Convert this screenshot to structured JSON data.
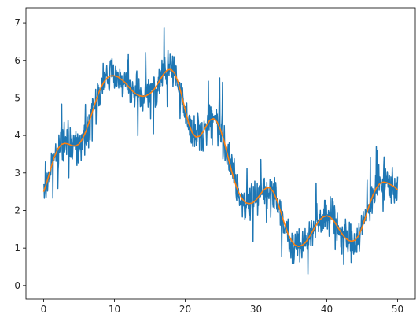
{
  "chart_data": {
    "type": "line",
    "title": "",
    "xlabel": "",
    "ylabel": "",
    "xlim": [
      -2.5,
      52.5
    ],
    "ylim": [
      -0.36,
      7.4
    ],
    "xticks": [
      0,
      10,
      20,
      30,
      40,
      50
    ],
    "yticks": [
      0,
      1,
      2,
      3,
      4,
      5,
      6,
      7
    ],
    "grid": false,
    "legend": "none",
    "series": [
      {
        "role": "noisy",
        "color": "#1f77b4",
        "x_range": [
          0,
          50
        ],
        "n_points": 1000,
        "noise_amplitude": 0.45,
        "spike_amplitude": 1.3,
        "seed": 7
      },
      {
        "role": "smooth",
        "color": "#ff7f0e",
        "x": [
          0,
          0.5,
          1,
          1.5,
          2,
          2.5,
          3,
          3.5,
          4,
          4.5,
          5,
          5.5,
          6,
          6.5,
          7,
          7.5,
          8,
          8.5,
          9,
          9.5,
          10,
          10.5,
          11,
          11.5,
          12,
          12.5,
          13,
          13.5,
          14,
          14.5,
          15,
          15.5,
          16,
          16.5,
          17,
          17.5,
          18,
          18.5,
          19,
          19.5,
          20,
          20.5,
          21,
          21.5,
          22,
          22.5,
          23,
          23.5,
          24,
          24.5,
          25,
          25.5,
          26,
          26.5,
          27,
          27.5,
          28,
          28.5,
          29,
          29.5,
          30,
          30.5,
          31,
          31.5,
          32,
          32.5,
          33,
          33.5,
          34,
          34.5,
          35,
          35.5,
          36,
          36.5,
          37,
          37.5,
          38,
          38.5,
          39,
          39.5,
          40,
          40.5,
          41,
          41.5,
          42,
          42.5,
          43,
          43.5,
          44,
          44.5,
          45,
          45.5,
          46,
          46.5,
          47,
          47.5,
          48,
          48.5,
          49,
          49.5,
          50
        ],
        "y": [
          2.5,
          2.78,
          3.11,
          3.42,
          3.64,
          3.76,
          3.79,
          3.77,
          3.73,
          3.72,
          3.77,
          3.91,
          4.12,
          4.4,
          4.7,
          4.99,
          5.24,
          5.42,
          5.54,
          5.59,
          5.59,
          5.56,
          5.49,
          5.41,
          5.3,
          5.19,
          5.11,
          5.06,
          5.04,
          5.06,
          5.11,
          5.2,
          5.34,
          5.5,
          5.65,
          5.75,
          5.76,
          5.66,
          5.42,
          5.07,
          4.68,
          4.32,
          4.07,
          3.96,
          3.98,
          4.09,
          4.26,
          4.41,
          4.45,
          4.36,
          4.15,
          3.84,
          3.47,
          3.09,
          2.76,
          2.5,
          2.32,
          2.21,
          2.18,
          2.2,
          2.28,
          2.4,
          2.53,
          2.61,
          2.6,
          2.48,
          2.25,
          1.96,
          1.66,
          1.39,
          1.2,
          1.08,
          1.04,
          1.07,
          1.15,
          1.29,
          1.45,
          1.61,
          1.75,
          1.83,
          1.86,
          1.82,
          1.72,
          1.57,
          1.42,
          1.29,
          1.21,
          1.18,
          1.21,
          1.33,
          1.55,
          1.84,
          2.14,
          2.4,
          2.6,
          2.72,
          2.76,
          2.74,
          2.69,
          2.64,
          2.55
        ]
      }
    ]
  }
}
